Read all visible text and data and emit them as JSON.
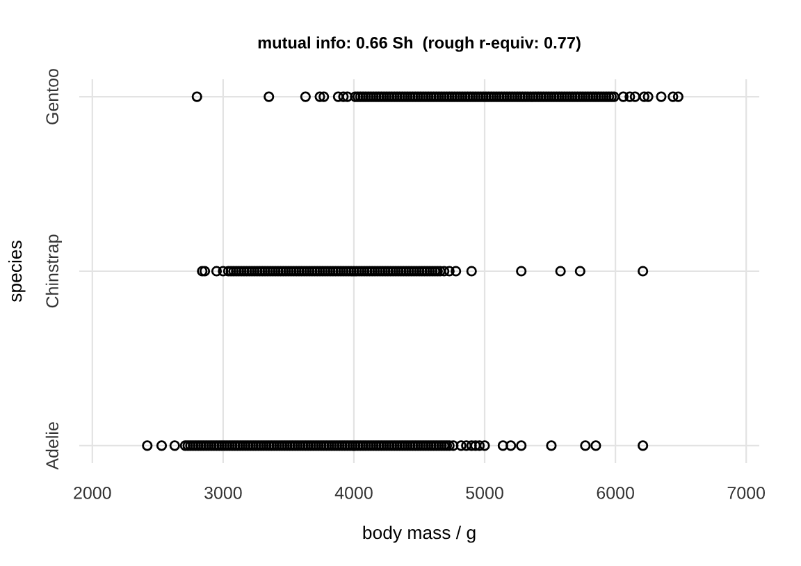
{
  "chart_data": {
    "type": "scatter",
    "orientation": "horizontal",
    "title": "mutual info: 0.66 Sh  (rough r-equiv: 0.77)",
    "xlabel": "body mass / g",
    "ylabel": "species",
    "categories": [
      "Gentoo",
      "Chinstrap",
      "Adelie"
    ],
    "xlim": [
      1900,
      7100
    ],
    "xticks": [
      2000,
      3000,
      4000,
      5000,
      6000,
      7000
    ],
    "grid": true,
    "marker": "circle",
    "series": [
      {
        "color": "#000000",
        "x": [
          "Gentoo",
          "Gentoo",
          "Gentoo",
          "Gentoo",
          "Gentoo",
          "Gentoo",
          "Gentoo",
          "Gentoo",
          "Gentoo",
          "Gentoo",
          "Gentoo",
          "Gentoo",
          "Gentoo",
          "Gentoo",
          "Gentoo",
          "Gentoo",
          "Gentoo",
          "Gentoo",
          "Gentoo",
          "Gentoo",
          "Gentoo",
          "Gentoo",
          "Gentoo",
          "Gentoo",
          "Gentoo",
          "Gentoo",
          "Gentoo",
          "Gentoo",
          "Gentoo",
          "Gentoo",
          "Gentoo",
          "Gentoo",
          "Gentoo",
          "Gentoo",
          "Gentoo",
          "Gentoo",
          "Gentoo",
          "Gentoo",
          "Gentoo",
          "Gentoo",
          "Gentoo",
          "Gentoo",
          "Gentoo",
          "Gentoo",
          "Gentoo",
          "Gentoo",
          "Gentoo",
          "Gentoo",
          "Gentoo",
          "Gentoo",
          "Gentoo",
          "Gentoo",
          "Gentoo",
          "Gentoo",
          "Gentoo",
          "Gentoo",
          "Gentoo",
          "Gentoo",
          "Gentoo",
          "Gentoo",
          "Gentoo",
          "Gentoo",
          "Gentoo",
          "Gentoo",
          "Gentoo",
          "Gentoo",
          "Gentoo",
          "Gentoo",
          "Gentoo",
          "Gentoo",
          "Gentoo",
          "Gentoo",
          "Gentoo",
          "Gentoo",
          "Gentoo",
          "Gentoo",
          "Gentoo",
          "Gentoo",
          "Gentoo",
          "Gentoo",
          "Gentoo",
          "Gentoo",
          "Gentoo",
          "Gentoo",
          "Gentoo",
          "Gentoo",
          "Gentoo",
          "Gentoo",
          "Gentoo",
          "Gentoo",
          "Gentoo",
          "Gentoo",
          "Gentoo",
          "Gentoo",
          "Gentoo",
          "Gentoo",
          "Gentoo",
          "Gentoo",
          "Gentoo",
          "Gentoo",
          "Gentoo",
          "Gentoo",
          "Gentoo",
          "Gentoo",
          "Gentoo",
          "Gentoo",
          "Gentoo",
          "Gentoo",
          "Gentoo",
          "Gentoo",
          "Gentoo",
          "Gentoo",
          "Gentoo",
          "Gentoo",
          "Gentoo",
          "Gentoo"
        ],
        "values": [
          2800,
          3350,
          3630,
          3740,
          3770,
          3880,
          3920,
          3950,
          4010,
          4030,
          4050,
          4070,
          4090,
          4110,
          4130,
          4150,
          4170,
          4190,
          4210,
          4230,
          4250,
          4270,
          4290,
          4310,
          4330,
          4350,
          4370,
          4390,
          4410,
          4430,
          4450,
          4470,
          4490,
          4510,
          4530,
          4550,
          4570,
          4590,
          4610,
          4630,
          4650,
          4670,
          4690,
          4710,
          4730,
          4750,
          4770,
          4790,
          4810,
          4830,
          4850,
          4870,
          4890,
          4910,
          4930,
          4950,
          4970,
          4990,
          5010,
          5030,
          5050,
          5070,
          5090,
          5110,
          5130,
          5150,
          5170,
          5190,
          5210,
          5230,
          5250,
          5270,
          5290,
          5310,
          5330,
          5350,
          5370,
          5390,
          5410,
          5430,
          5450,
          5470,
          5490,
          5510,
          5530,
          5550,
          5570,
          5590,
          5610,
          5630,
          5650,
          5670,
          5690,
          5710,
          5730,
          5750,
          5770,
          5790,
          5810,
          5830,
          5850,
          5870,
          5890,
          5910,
          5930,
          5950,
          5970,
          5990,
          6060,
          6110,
          6150,
          6220,
          6250,
          6350,
          6440,
          6480
        ]
      },
      {
        "color": "#000000",
        "x": [
          "Chinstrap",
          "Chinstrap",
          "Chinstrap",
          "Chinstrap",
          "Chinstrap",
          "Chinstrap",
          "Chinstrap",
          "Chinstrap",
          "Chinstrap",
          "Chinstrap",
          "Chinstrap",
          "Chinstrap",
          "Chinstrap",
          "Chinstrap",
          "Chinstrap",
          "Chinstrap",
          "Chinstrap",
          "Chinstrap",
          "Chinstrap",
          "Chinstrap",
          "Chinstrap",
          "Chinstrap",
          "Chinstrap",
          "Chinstrap",
          "Chinstrap",
          "Chinstrap",
          "Chinstrap",
          "Chinstrap",
          "Chinstrap",
          "Chinstrap",
          "Chinstrap",
          "Chinstrap",
          "Chinstrap",
          "Chinstrap",
          "Chinstrap",
          "Chinstrap",
          "Chinstrap",
          "Chinstrap",
          "Chinstrap",
          "Chinstrap",
          "Chinstrap",
          "Chinstrap",
          "Chinstrap",
          "Chinstrap",
          "Chinstrap",
          "Chinstrap",
          "Chinstrap",
          "Chinstrap",
          "Chinstrap",
          "Chinstrap",
          "Chinstrap",
          "Chinstrap",
          "Chinstrap",
          "Chinstrap",
          "Chinstrap",
          "Chinstrap",
          "Chinstrap",
          "Chinstrap",
          "Chinstrap",
          "Chinstrap",
          "Chinstrap",
          "Chinstrap",
          "Chinstrap",
          "Chinstrap",
          "Chinstrap",
          "Chinstrap",
          "Chinstrap",
          "Chinstrap",
          "Chinstrap",
          "Chinstrap",
          "Chinstrap",
          "Chinstrap",
          "Chinstrap",
          "Chinstrap",
          "Chinstrap",
          "Chinstrap",
          "Chinstrap",
          "Chinstrap",
          "Chinstrap",
          "Chinstrap",
          "Chinstrap",
          "Chinstrap",
          "Chinstrap",
          "Chinstrap",
          "Chinstrap",
          "Chinstrap",
          "Chinstrap",
          "Chinstrap",
          "Chinstrap",
          "Chinstrap",
          "Chinstrap",
          "Chinstrap",
          "Chinstrap",
          "Chinstrap"
        ],
        "values": [
          2840,
          2860,
          2950,
          3000,
          3040,
          3060,
          3080,
          3100,
          3120,
          3140,
          3160,
          3180,
          3200,
          3220,
          3240,
          3260,
          3280,
          3300,
          3320,
          3340,
          3360,
          3380,
          3400,
          3420,
          3440,
          3460,
          3480,
          3500,
          3520,
          3540,
          3560,
          3580,
          3600,
          3620,
          3640,
          3660,
          3680,
          3700,
          3720,
          3740,
          3760,
          3780,
          3800,
          3820,
          3840,
          3860,
          3880,
          3900,
          3920,
          3940,
          3960,
          3980,
          4000,
          4020,
          4040,
          4060,
          4080,
          4100,
          4120,
          4140,
          4160,
          4180,
          4200,
          4220,
          4240,
          4260,
          4280,
          4300,
          4320,
          4340,
          4360,
          4380,
          4400,
          4420,
          4440,
          4460,
          4480,
          4500,
          4520,
          4540,
          4560,
          4580,
          4600,
          4620,
          4640,
          4660,
          4690,
          4730,
          4780,
          4900,
          5280,
          5580,
          5730,
          6210
        ]
      },
      {
        "color": "#000000",
        "x": [
          "Adelie",
          "Adelie",
          "Adelie",
          "Adelie",
          "Adelie",
          "Adelie",
          "Adelie",
          "Adelie",
          "Adelie",
          "Adelie",
          "Adelie",
          "Adelie",
          "Adelie",
          "Adelie",
          "Adelie",
          "Adelie",
          "Adelie",
          "Adelie",
          "Adelie",
          "Adelie",
          "Adelie",
          "Adelie",
          "Adelie",
          "Adelie",
          "Adelie",
          "Adelie",
          "Adelie",
          "Adelie",
          "Adelie",
          "Adelie",
          "Adelie",
          "Adelie",
          "Adelie",
          "Adelie",
          "Adelie",
          "Adelie",
          "Adelie",
          "Adelie",
          "Adelie",
          "Adelie",
          "Adelie",
          "Adelie",
          "Adelie",
          "Adelie",
          "Adelie",
          "Adelie",
          "Adelie",
          "Adelie",
          "Adelie",
          "Adelie",
          "Adelie",
          "Adelie",
          "Adelie",
          "Adelie",
          "Adelie",
          "Adelie",
          "Adelie",
          "Adelie",
          "Adelie",
          "Adelie",
          "Adelie",
          "Adelie",
          "Adelie",
          "Adelie",
          "Adelie",
          "Adelie",
          "Adelie",
          "Adelie",
          "Adelie",
          "Adelie",
          "Adelie",
          "Adelie",
          "Adelie",
          "Adelie",
          "Adelie",
          "Adelie",
          "Adelie",
          "Adelie",
          "Adelie",
          "Adelie",
          "Adelie",
          "Adelie",
          "Adelie",
          "Adelie",
          "Adelie",
          "Adelie",
          "Adelie",
          "Adelie",
          "Adelie",
          "Adelie",
          "Adelie",
          "Adelie",
          "Adelie",
          "Adelie",
          "Adelie",
          "Adelie",
          "Adelie",
          "Adelie",
          "Adelie",
          "Adelie",
          "Adelie",
          "Adelie",
          "Adelie",
          "Adelie",
          "Adelie",
          "Adelie",
          "Adelie",
          "Adelie",
          "Adelie",
          "Adelie",
          "Adelie",
          "Adelie",
          "Adelie",
          "Adelie",
          "Adelie",
          "Adelie",
          "Adelie",
          "Adelie",
          "Adelie"
        ],
        "values": [
          2420,
          2530,
          2630,
          2710,
          2730,
          2750,
          2770,
          2790,
          2810,
          2830,
          2850,
          2870,
          2890,
          2910,
          2930,
          2950,
          2970,
          2990,
          3010,
          3030,
          3050,
          3070,
          3090,
          3110,
          3130,
          3150,
          3170,
          3190,
          3210,
          3230,
          3250,
          3270,
          3290,
          3310,
          3330,
          3350,
          3370,
          3390,
          3410,
          3430,
          3450,
          3470,
          3490,
          3510,
          3530,
          3550,
          3570,
          3590,
          3610,
          3630,
          3650,
          3670,
          3690,
          3710,
          3730,
          3750,
          3770,
          3790,
          3810,
          3830,
          3850,
          3870,
          3890,
          3910,
          3930,
          3950,
          3970,
          3990,
          4010,
          4030,
          4050,
          4070,
          4090,
          4110,
          4130,
          4150,
          4170,
          4190,
          4210,
          4230,
          4250,
          4270,
          4290,
          4310,
          4330,
          4350,
          4370,
          4390,
          4410,
          4430,
          4450,
          4470,
          4490,
          4510,
          4530,
          4550,
          4570,
          4590,
          4610,
          4630,
          4650,
          4670,
          4690,
          4710,
          4730,
          4760,
          4820,
          4860,
          4900,
          4930,
          4960,
          5000,
          5140,
          5200,
          5280,
          5510,
          5770,
          5850,
          6210
        ]
      }
    ]
  }
}
